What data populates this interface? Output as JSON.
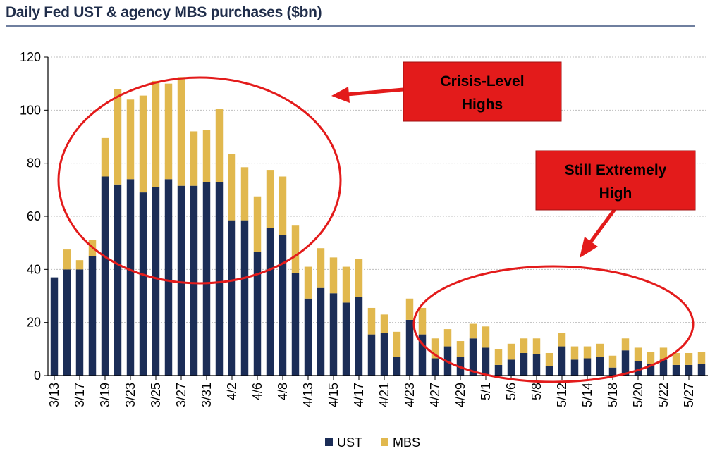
{
  "title": "Daily Fed UST & agency MBS purchases ($bn)",
  "colors": {
    "UST": "#1b2d57",
    "MBS": "#e1b84e",
    "annotation": "#e31b1b",
    "title_text": "#1f2d4a"
  },
  "annotations": [
    {
      "text": [
        "Crisis-Level",
        "Highs"
      ]
    },
    {
      "text": [
        "Still Extremely",
        "High"
      ]
    }
  ],
  "chart_data": {
    "type": "bar",
    "stacked": true,
    "title": "Daily Fed UST & agency MBS purchases ($bn)",
    "ylim": [
      0,
      120
    ],
    "yticks": [
      0,
      20,
      40,
      60,
      80,
      100,
      120
    ],
    "grid": true,
    "legend_position": "bottom",
    "x_tick_labels": [
      {
        "i": 0,
        "label": "3/13"
      },
      {
        "i": 2,
        "label": "3/17"
      },
      {
        "i": 4,
        "label": "3/19"
      },
      {
        "i": 6,
        "label": "3/23"
      },
      {
        "i": 8,
        "label": "3/25"
      },
      {
        "i": 10,
        "label": "3/27"
      },
      {
        "i": 12,
        "label": "3/31"
      },
      {
        "i": 14,
        "label": "4/2"
      },
      {
        "i": 16,
        "label": "4/6"
      },
      {
        "i": 18,
        "label": "4/8"
      },
      {
        "i": 20,
        "label": "4/13"
      },
      {
        "i": 22,
        "label": "4/15"
      },
      {
        "i": 24,
        "label": "4/17"
      },
      {
        "i": 26,
        "label": "4/21"
      },
      {
        "i": 28,
        "label": "4/23"
      },
      {
        "i": 30,
        "label": "4/27"
      },
      {
        "i": 32,
        "label": "4/29"
      },
      {
        "i": 34,
        "label": "5/1"
      },
      {
        "i": 36,
        "label": "5/6"
      },
      {
        "i": 38,
        "label": "5/8"
      },
      {
        "i": 40,
        "label": "5/12"
      },
      {
        "i": 42,
        "label": "5/14"
      },
      {
        "i": 44,
        "label": "5/18"
      },
      {
        "i": 46,
        "label": "5/20"
      },
      {
        "i": 48,
        "label": "5/22"
      },
      {
        "i": 50,
        "label": "5/27"
      }
    ],
    "series": [
      {
        "name": "UST",
        "values": [
          37,
          40,
          40,
          45,
          75,
          72,
          74,
          69,
          71,
          74,
          71.5,
          71.5,
          73,
          73,
          58.5,
          58.5,
          46.5,
          55.5,
          53,
          38.5,
          29,
          33,
          31,
          27.5,
          29.5,
          15.5,
          16,
          7,
          21,
          15.5,
          6.5,
          11,
          7,
          14,
          10.5,
          4,
          6,
          8.5,
          8,
          3.5,
          11,
          6,
          6.5,
          7,
          3,
          9.5,
          5.5,
          4.5,
          6,
          4,
          4,
          4.5
        ]
      },
      {
        "name": "MBS",
        "values": [
          0,
          7.5,
          3.5,
          6,
          14.5,
          36,
          30,
          36.5,
          40,
          36,
          41,
          20.5,
          19.5,
          27.5,
          25,
          20,
          21,
          22,
          22,
          18,
          12,
          15,
          13.5,
          13.5,
          14.5,
          10,
          7,
          9.5,
          8,
          10,
          7.5,
          6.5,
          6,
          5.5,
          8,
          6,
          6,
          5.5,
          6,
          5,
          5,
          5,
          4.5,
          5,
          4.5,
          4.5,
          5,
          4.5,
          4.5,
          4.5,
          4.5,
          4.5
        ]
      }
    ]
  }
}
